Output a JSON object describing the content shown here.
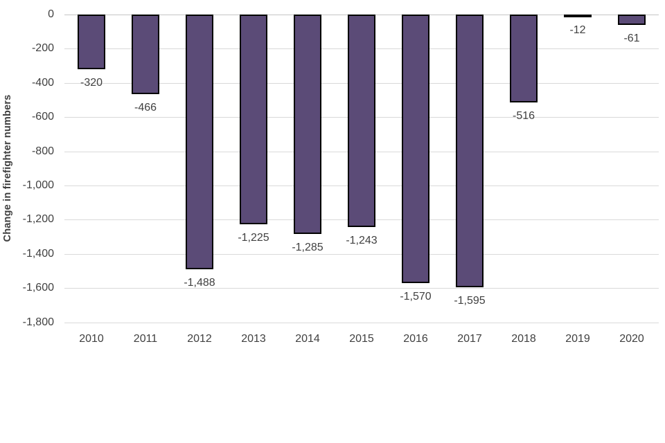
{
  "chart_data": {
    "type": "bar",
    "title": "",
    "xlabel": "",
    "ylabel": "Change in firefighter numbers",
    "categories": [
      "2010",
      "2011",
      "2012",
      "2013",
      "2014",
      "2015",
      "2016",
      "2017",
      "2018",
      "2019",
      "2020"
    ],
    "values": [
      -320,
      -466,
      -1488,
      -1225,
      -1285,
      -1243,
      -1570,
      -1595,
      -516,
      -12,
      -61
    ],
    "data_labels": [
      "-320",
      "-466",
      "-1,488",
      "-1,225",
      "-1,285",
      "-1,243",
      "-1,570",
      "-1,595",
      "-516",
      "-12",
      "-61"
    ],
    "ytick_values": [
      0,
      -200,
      -400,
      -600,
      -800,
      -1000,
      -1200,
      -1400,
      -1600,
      -1800
    ],
    "ytick_labels": [
      "0",
      "-200",
      "-400",
      "-600",
      "-800",
      "-1,000",
      "-1,200",
      "-1,400",
      "-1,600",
      "-1,800"
    ],
    "ylim": [
      -1800,
      0
    ],
    "ytick_step": 200,
    "grid": true,
    "legend": false,
    "colors": {
      "bar_fill": "#5b4b77",
      "bar_border": "#000000",
      "gridline": "#d9d9d9",
      "zero_line": "#c6c6c6",
      "text": "#404040",
      "background": "#ffffff"
    }
  }
}
